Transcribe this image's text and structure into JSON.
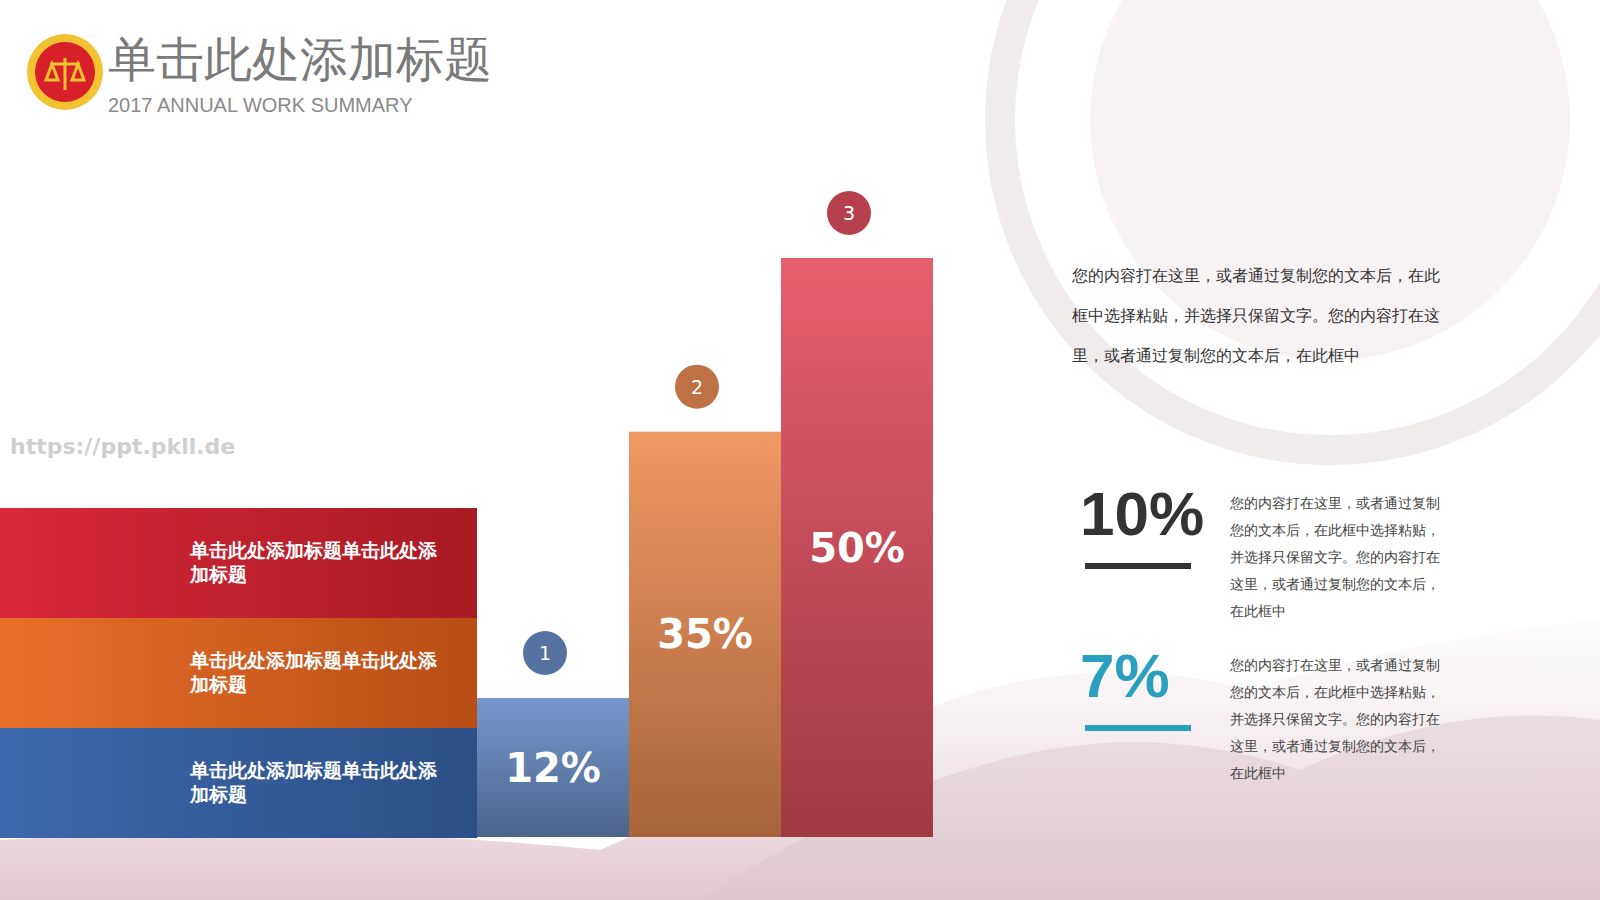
{
  "header": {
    "title": "单击此处添加标题",
    "subtitle": "2017 ANNUAL WORK SUMMARY"
  },
  "watermark": "https://ppt.pkll.de",
  "chart_data": {
    "type": "bar",
    "categories": [
      "1",
      "2",
      "3"
    ],
    "values": [
      12,
      35,
      50
    ],
    "value_labels": [
      "12%",
      "35%",
      "50%"
    ],
    "colors": [
      "#6b8fc8",
      "#ee8f55",
      "#e45160"
    ],
    "ylim": [
      0,
      50
    ],
    "data_labels": true,
    "tick_labels": false
  },
  "bands": [
    "单击此处添加标题单击此处添加标题",
    "单击此处添加标题单击此处添加标题",
    "单击此处添加标题单击此处添加标题"
  ],
  "description": "您的内容打在这里，或者通过复制您的文本后，在此框中选择粘贴，并选择只保留文字。您的内容打在这里，或者通过复制您的文本后，在此框中",
  "stats": [
    {
      "label": "10%",
      "text": "您的内容打在这里，或者通过复制您的文本后，在此框中选择粘贴，并选择只保留文字。您的内容打在这里，或者通过复制您的文本后，在此框中"
    },
    {
      "label": "7%",
      "text": "您的内容打在这里，或者通过复制您的文本后，在此框中选择粘贴，并选择只保留文字。您的内容打在这里，或者通过复制您的文本后，在此框中"
    }
  ]
}
